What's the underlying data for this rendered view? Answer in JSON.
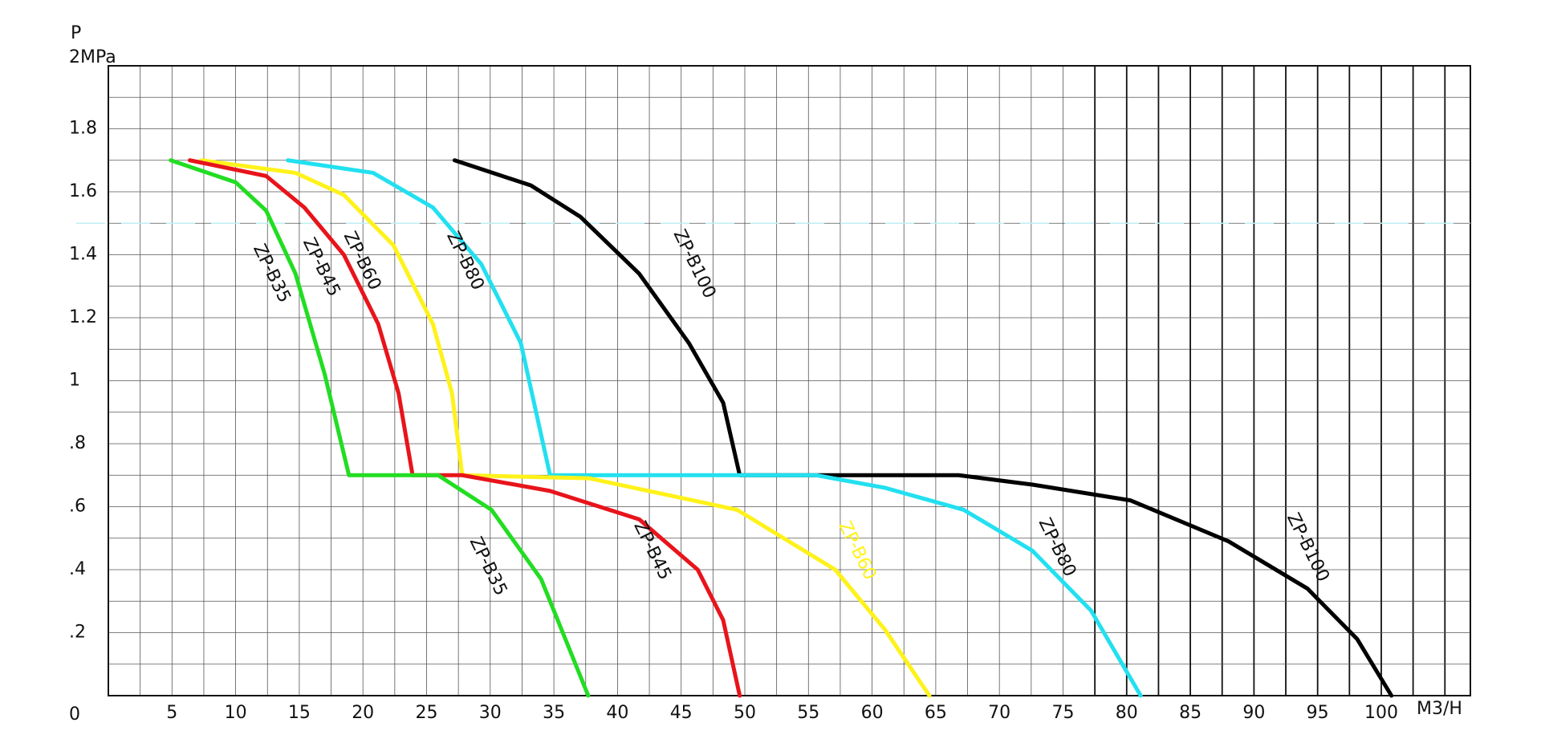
{
  "chart_data": {
    "type": "line",
    "y_label": "P",
    "x_label": "M3/H",
    "xlim": [
      0,
      107
    ],
    "ylim": [
      0,
      2
    ],
    "xticks": [
      5,
      10,
      15,
      20,
      25,
      30,
      35,
      40,
      45,
      50,
      55,
      60,
      65,
      70,
      75,
      80,
      85,
      90,
      95,
      100
    ],
    "yticks": [
      0,
      {
        "value": 0.2,
        "label": ".2"
      },
      {
        "value": 0.4,
        "label": ".4"
      },
      {
        "value": 0.6,
        "label": ".6"
      },
      {
        "value": 0.8,
        "label": ".8"
      },
      1,
      1.2,
      1.4,
      1.6,
      1.8,
      {
        "value": 2,
        "label": "2MPa"
      }
    ],
    "xminorticks": [
      2.5,
      7.5,
      12.5,
      17.5,
      22.5,
      27.5,
      32.5,
      37.5,
      42.5,
      47.5,
      52.5,
      57.5,
      62.5,
      67.5,
      72.5,
      77.5,
      82.5,
      87.5,
      92.5,
      97.5,
      102.5,
      105
    ],
    "yminorticks": [
      0.1,
      0.3,
      0.5,
      0.7,
      0.9,
      1.1,
      1.3,
      1.5,
      1.7,
      1.9
    ],
    "grid": true,
    "hline": {
      "value": 1.5,
      "color": "#bfeff5"
    },
    "series": [
      {
        "name": "ZP-B35",
        "color": "#22dd22",
        "x": [
          4.9,
          10,
          12.4,
          14.7,
          17,
          18.9,
          25.9,
          30.1,
          34,
          37.7
        ],
        "values": [
          1.7,
          1.63,
          1.54,
          1.34,
          1.02,
          0.7,
          0.7,
          0.59,
          0.37,
          0
        ]
      },
      {
        "name": "ZP-B45",
        "color": "#e8141b",
        "x": [
          6.4,
          12.4,
          15.4,
          18.5,
          21.2,
          22.8,
          23.9,
          27.8,
          34.7,
          41.7,
          46.3,
          48.3,
          49.6
        ],
        "values": [
          1.7,
          1.65,
          1.55,
          1.4,
          1.18,
          0.96,
          0.7,
          0.7,
          0.65,
          0.56,
          0.4,
          0.24,
          0
        ]
      },
      {
        "name": "ZP-B60",
        "color": "#fff21a",
        "x": [
          7.3,
          14.7,
          18.5,
          22.4,
          25.5,
          27,
          27.8,
          37.8,
          49.4,
          57.1,
          61,
          64.5
        ],
        "values": [
          1.7,
          1.66,
          1.59,
          1.43,
          1.18,
          0.96,
          0.7,
          0.69,
          0.59,
          0.4,
          0.21,
          0
        ]
      },
      {
        "name": "ZP-B80",
        "color": "#22e0f0",
        "x": [
          14.1,
          20.8,
          25.5,
          29.3,
          32.4,
          34.7,
          55.6,
          61,
          67.2,
          72.6,
          77.2,
          81.1
        ],
        "values": [
          1.7,
          1.66,
          1.55,
          1.37,
          1.12,
          0.7,
          0.7,
          0.66,
          0.59,
          0.46,
          0.27,
          0
        ]
      },
      {
        "name": "ZP-B100",
        "color": "#000000",
        "x": [
          27.2,
          33.2,
          37.1,
          41.7,
          45.6,
          48.3,
          49.6,
          66.8,
          72.6,
          80.3,
          88,
          94.2,
          98.1,
          100.8
        ],
        "values": [
          1.7,
          1.62,
          1.52,
          1.34,
          1.12,
          0.93,
          0.7,
          0.7,
          0.67,
          0.62,
          0.49,
          0.34,
          0.18,
          0
        ]
      }
    ]
  }
}
